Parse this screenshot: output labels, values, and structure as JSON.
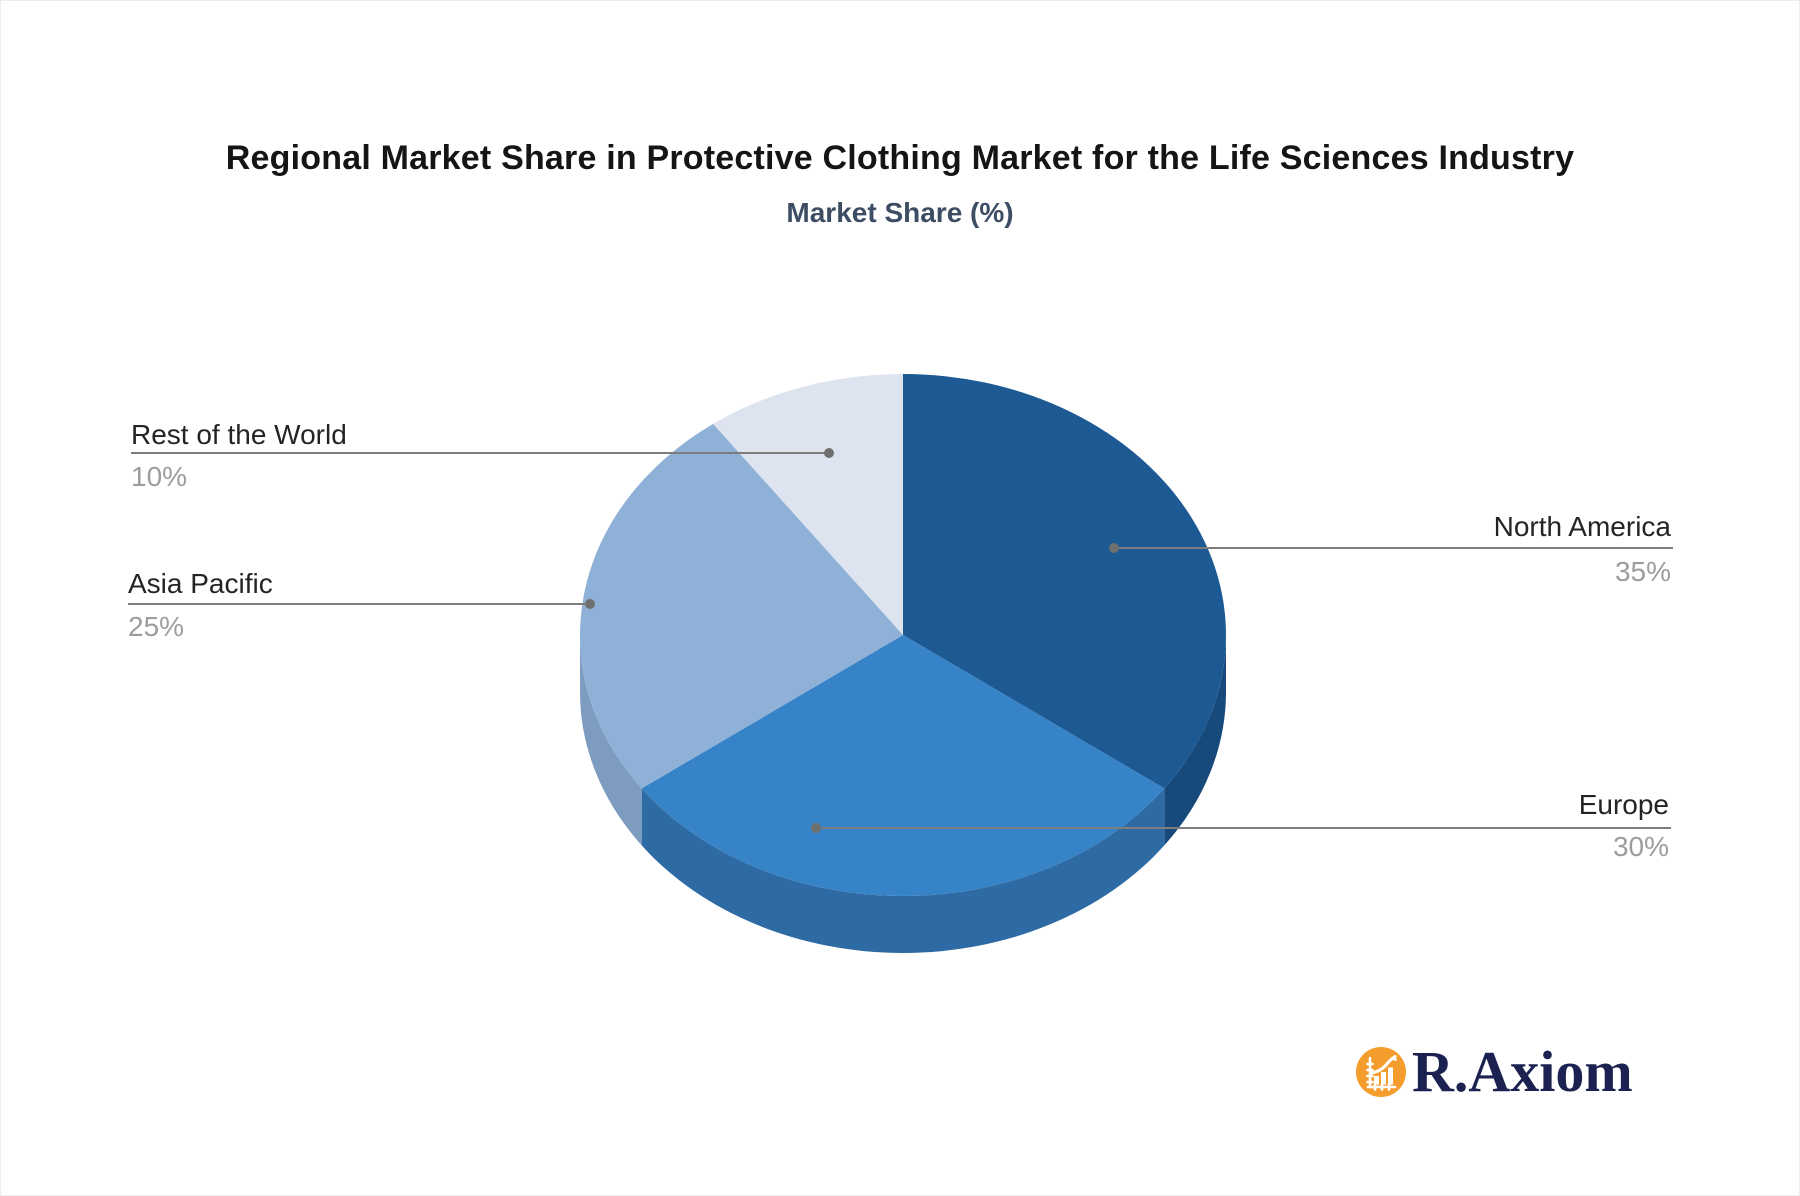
{
  "header": {
    "title": "Regional Market Share in Protective Clothing Market for the Life Sciences Industry",
    "subtitle": "Market Share (%)"
  },
  "chart_data": {
    "type": "pie",
    "style": "3d-pie",
    "title": "Regional Market Share in Protective Clothing Market for the Life Sciences Industry",
    "subtitle": "Market Share (%)",
    "unit": "%",
    "start_angle_deg": 0,
    "direction": "clockwise",
    "legend_position": "outside-leader-lines",
    "slices": [
      {
        "label": "North America",
        "value": 35,
        "pct_label": "35%",
        "color": "#1d5a93",
        "side_color": "#174a7b"
      },
      {
        "label": "Europe",
        "value": 30,
        "pct_label": "30%",
        "color": "#3783c7",
        "side_color": "#2e6ba4"
      },
      {
        "label": "Asia Pacific",
        "value": 25,
        "pct_label": "25%",
        "color": "#8fb1d7",
        "side_color": "#7e9cbf"
      },
      {
        "label": "Rest of the World",
        "value": 10,
        "pct_label": "10%",
        "color": "#dde4ef",
        "side_color": "#bcc8da"
      }
    ]
  },
  "branding": {
    "logo_text": "R.Axiom",
    "logo_icon": "bar-chart-growth-icon",
    "logo_circle_color": "#f59d2c",
    "logo_icon_color": "#ffffff",
    "logo_text_color": "#1b2150"
  },
  "colors": {
    "title_text": "#151515",
    "subtitle_text": "#3d4d63",
    "label_text": "#242424",
    "pct_text": "#9d9d9d",
    "leader_line": "#7d7d7d",
    "leader_dot": "#6f6f6f",
    "background": "#ffffff"
  }
}
